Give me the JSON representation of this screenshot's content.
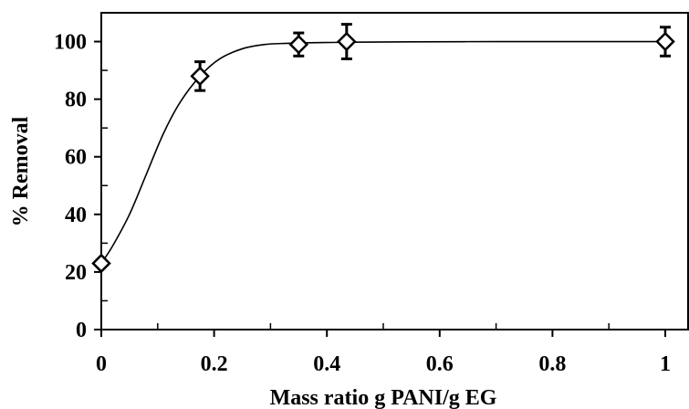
{
  "chart_data": {
    "type": "scatter",
    "title": "",
    "xlabel": "Mass ratio g PANI/g EG",
    "ylabel": "% Removal",
    "xlim": [
      0,
      1
    ],
    "ylim": [
      0,
      110
    ],
    "x_ticks": [
      0,
      0.2,
      0.4,
      0.6,
      0.8,
      1
    ],
    "x_tick_labels": [
      "0",
      "0.2",
      "0.4",
      "0.6",
      "0.8",
      "1"
    ],
    "y_ticks": [
      0,
      20,
      40,
      60,
      80,
      100
    ],
    "y_tick_labels": [
      "0",
      "20",
      "40",
      "60",
      "80",
      "100"
    ],
    "grid": false,
    "legend": "none",
    "marker": "open-diamond",
    "series": [
      {
        "x": [
          0,
          0.175,
          0.35,
          0.435,
          1
        ],
        "y": [
          23,
          88,
          99,
          100,
          100
        ],
        "error": [
          0,
          5,
          4,
          6,
          5
        ]
      }
    ],
    "trend_line": {
      "type": "smooth-fit",
      "x": [
        0,
        0.02,
        0.05,
        0.08,
        0.11,
        0.14,
        0.175,
        0.21,
        0.25,
        0.29,
        0.33,
        0.37,
        0.41,
        0.45,
        0.55,
        0.7,
        0.85,
        1
      ],
      "y": [
        23,
        29,
        40,
        54,
        68,
        79,
        88,
        94,
        97.5,
        99,
        99.4,
        99.6,
        99.7,
        99.8,
        99.9,
        100,
        100,
        100
      ]
    },
    "colors": {
      "axis": "#000000",
      "marker_edge": "#000000",
      "marker_fill": "#ffffff",
      "line": "#000000"
    }
  }
}
